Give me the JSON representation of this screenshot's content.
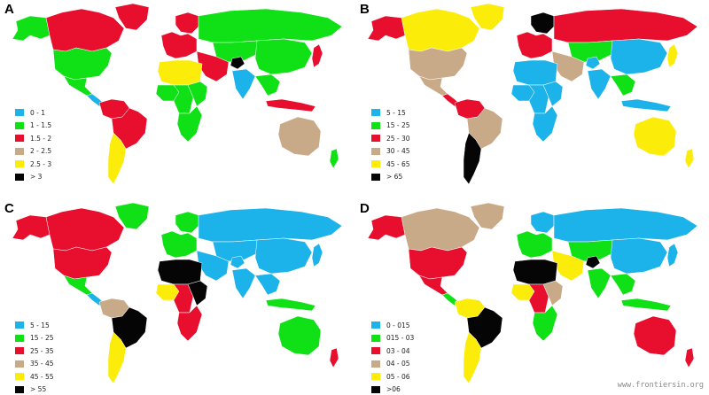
{
  "colors": {
    "blue": "#1cb3ea",
    "green": "#10e016",
    "red": "#e80f2e",
    "tan": "#c9aa88",
    "yellow": "#fbec0a",
    "black": "#050505"
  },
  "panels": [
    {
      "letter": "A",
      "legend": [
        {
          "label": "0 - 1",
          "color": "#1cb3ea"
        },
        {
          "label": "1 - 1.5",
          "color": "#10e016"
        },
        {
          "label": "1.5 - 2",
          "color": "#e80f2e"
        },
        {
          "label": "2 - 2.5",
          "color": "#c9aa88"
        },
        {
          "label": "2.5 - 3",
          "color": "#fbec0a"
        },
        {
          "label": "> 3",
          "color": "#050505"
        }
      ],
      "regions": {
        "alaska": "#10e016",
        "canada": "#e80f2e",
        "greenland": "#e80f2e",
        "usa": "#10e016",
        "mexico": "#10e016",
        "central-america": "#1cb3ea",
        "south-america-north": "#e80f2e",
        "brazil": "#e80f2e",
        "south-cone": "#fbec0a",
        "europe-west": "#e80f2e",
        "scandinavia": "#e80f2e",
        "russia": "#10e016",
        "central-asia": "#10e016",
        "middle-east": "#e80f2e",
        "north-africa": "#fbec0a",
        "west-africa": "#10e016",
        "central-africa": "#10e016",
        "east-africa": "#10e016",
        "southern-africa": "#10e016",
        "india": "#1cb3ea",
        "china": "#10e016",
        "southeast-asia": "#10e016",
        "japan": "#e80f2e",
        "indonesia": "#e80f2e",
        "australia": "#c9aa88",
        "new-zealand": "#10e016",
        "afghanistan": "#050505"
      }
    },
    {
      "letter": "B",
      "legend": [
        {
          "label": "5 - 15",
          "color": "#1cb3ea"
        },
        {
          "label": "15 - 25",
          "color": "#10e016"
        },
        {
          "label": "25 - 30",
          "color": "#e80f2e"
        },
        {
          "label": "30 - 45",
          "color": "#c9aa88"
        },
        {
          "label": "45 - 65",
          "color": "#fbec0a"
        },
        {
          "label": "> 65",
          "color": "#050505"
        }
      ],
      "regions": {
        "alaska": "#e80f2e",
        "canada": "#fbec0a",
        "greenland": "#fbec0a",
        "usa": "#c9aa88",
        "mexico": "#c9aa88",
        "central-america": "#e80f2e",
        "south-america-north": "#e80f2e",
        "brazil": "#c9aa88",
        "south-cone": "#050505",
        "europe-west": "#e80f2e",
        "scandinavia": "#050505",
        "russia": "#e80f2e",
        "central-asia": "#10e016",
        "middle-east": "#c9aa88",
        "north-africa": "#1cb3ea",
        "west-africa": "#1cb3ea",
        "central-africa": "#1cb3ea",
        "east-africa": "#1cb3ea",
        "southern-africa": "#1cb3ea",
        "india": "#1cb3ea",
        "china": "#1cb3ea",
        "southeast-asia": "#10e016",
        "japan": "#fbec0a",
        "indonesia": "#1cb3ea",
        "australia": "#fbec0a",
        "new-zealand": "#fbec0a",
        "afghanistan": "#1cb3ea"
      }
    },
    {
      "letter": "C",
      "legend": [
        {
          "label": "5 - 15",
          "color": "#1cb3ea"
        },
        {
          "label": "15 - 25",
          "color": "#10e016"
        },
        {
          "label": "25 - 35",
          "color": "#e80f2e"
        },
        {
          "label": "35 - 45",
          "color": "#c9aa88"
        },
        {
          "label": "45 - 55",
          "color": "#fbec0a"
        },
        {
          "label": "> 55",
          "color": "#050505"
        }
      ],
      "regions": {
        "alaska": "#e80f2e",
        "canada": "#e80f2e",
        "greenland": "#10e016",
        "usa": "#e80f2e",
        "mexico": "#10e016",
        "central-america": "#1cb3ea",
        "south-america-north": "#c9aa88",
        "brazil": "#050505",
        "south-cone": "#fbec0a",
        "europe-west": "#10e016",
        "scandinavia": "#10e016",
        "russia": "#1cb3ea",
        "central-asia": "#1cb3ea",
        "middle-east": "#1cb3ea",
        "north-africa": "#050505",
        "west-africa": "#fbec0a",
        "central-africa": "#e80f2e",
        "east-africa": "#050505",
        "southern-africa": "#e80f2e",
        "india": "#1cb3ea",
        "china": "#1cb3ea",
        "southeast-asia": "#1cb3ea",
        "japan": "#1cb3ea",
        "indonesia": "#10e016",
        "australia": "#10e016",
        "new-zealand": "#e80f2e",
        "afghanistan": "#1cb3ea"
      }
    },
    {
      "letter": "D",
      "legend": [
        {
          "label": "0 - 015",
          "color": "#1cb3ea"
        },
        {
          "label": "015 - 03",
          "color": "#10e016"
        },
        {
          "label": "03 - 04",
          "color": "#e80f2e"
        },
        {
          "label": "04 - 05",
          "color": "#c9aa88"
        },
        {
          "label": "05 - 06",
          "color": "#fbec0a"
        },
        {
          "label": ">06",
          "color": "#050505"
        }
      ],
      "regions": {
        "alaska": "#e80f2e",
        "canada": "#c9aa88",
        "greenland": "#c9aa88",
        "usa": "#e80f2e",
        "mexico": "#e80f2e",
        "central-america": "#10e016",
        "south-america-north": "#fbec0a",
        "brazil": "#050505",
        "south-cone": "#fbec0a",
        "europe-west": "#10e016",
        "scandinavia": "#1cb3ea",
        "russia": "#1cb3ea",
        "central-asia": "#10e016",
        "middle-east": "#fbec0a",
        "north-africa": "#050505",
        "west-africa": "#fbec0a",
        "central-africa": "#e80f2e",
        "east-africa": "#c9aa88",
        "southern-africa": "#10e016",
        "india": "#10e016",
        "china": "#1cb3ea",
        "southeast-asia": "#10e016",
        "japan": "#1cb3ea",
        "indonesia": "#10e016",
        "australia": "#e80f2e",
        "new-zealand": "#e80f2e",
        "afghanistan": "#050505"
      }
    }
  ],
  "credit": "www.frontiersin.org"
}
